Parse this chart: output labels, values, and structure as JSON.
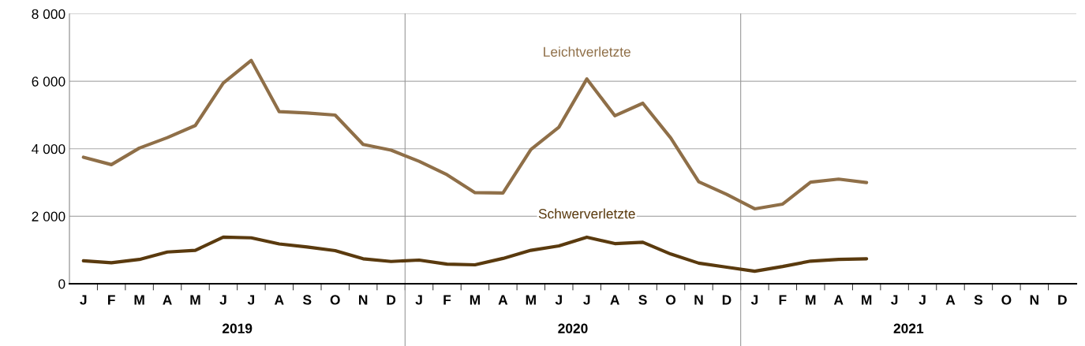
{
  "chart_data": {
    "type": "line",
    "categories": [
      "J",
      "F",
      "M",
      "A",
      "M",
      "J",
      "J",
      "A",
      "S",
      "O",
      "N",
      "D",
      "J",
      "F",
      "M",
      "A",
      "M",
      "J",
      "J",
      "A",
      "S",
      "O",
      "N",
      "D",
      "J",
      "F",
      "M",
      "A",
      "M",
      "J",
      "J",
      "A",
      "S",
      "O",
      "N",
      "D"
    ],
    "series": [
      {
        "name": "Leichtverletzte",
        "color": "#8f6f48",
        "values": [
          3750,
          3530,
          4020,
          4330,
          4690,
          5950,
          6620,
          5100,
          5060,
          5000,
          4130,
          3960,
          3630,
          3230,
          2700,
          2690,
          3980,
          4640,
          6070,
          4980,
          5350,
          4320,
          3020,
          2650,
          2220,
          2360,
          3010,
          3100,
          3000,
          null,
          null,
          null,
          null,
          null,
          null,
          null
        ]
      },
      {
        "name": "Schwerverletzte",
        "color": "#5a3a0e",
        "values": [
          680,
          620,
          720,
          940,
          990,
          1380,
          1360,
          1180,
          1090,
          980,
          740,
          660,
          700,
          580,
          560,
          750,
          990,
          1120,
          1380,
          1190,
          1230,
          880,
          610,
          490,
          370,
          510,
          670,
          720,
          740,
          null,
          null,
          null,
          null,
          null,
          null,
          null
        ]
      }
    ],
    "ylim": [
      0,
      8000
    ],
    "yticks": [
      0,
      {
        "value": 2000,
        "label": "2 000"
      },
      {
        "value": 4000,
        "label": "4 000"
      },
      {
        "value": 6000,
        "label": "6 000"
      },
      {
        "value": 8000,
        "label": "8 000"
      }
    ],
    "grid": "y",
    "legend": false,
    "marker": "none",
    "line_style": "solid",
    "annotations": [
      "2019",
      "2020",
      "2021"
    ]
  }
}
